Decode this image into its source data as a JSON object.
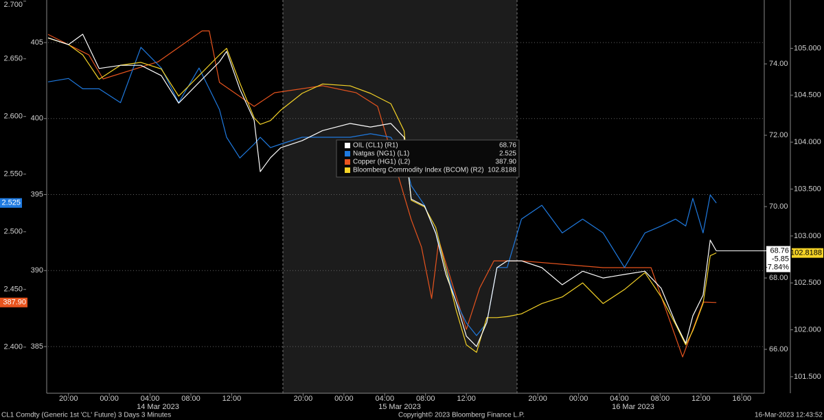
{
  "chart_data": {
    "type": "line",
    "x": [
      0,
      2.0,
      3.4,
      5.0,
      7.1,
      9.1,
      11.1,
      12.8,
      14.8,
      16.8,
      17.5,
      18.8,
      20.2,
      20.8,
      21.8,
      22.8,
      24.9,
      26.9,
      29.6,
      31.6,
      33.6,
      34.9,
      35.6,
      36.9,
      38.0,
      39.0,
      40.0,
      41.0,
      42.0,
      43.0,
      44.0,
      45.0,
      46.4,
      48.4,
      50.4,
      52.4,
      54.4,
      56.5,
      58.5,
      60.1,
      61.5,
      62.5,
      63.2,
      64.2,
      64.9,
      65.5
    ],
    "xlim": [
      0,
      70.2
    ],
    "xticks": [
      {
        "value": 2,
        "label": "20:00"
      },
      {
        "value": 6,
        "label": "00:00"
      },
      {
        "value": 10,
        "label": "04:00"
      },
      {
        "value": 14,
        "label": "08:00"
      },
      {
        "value": 18,
        "label": "12:00"
      },
      {
        "value": 25,
        "label": "20:00"
      },
      {
        "value": 29,
        "label": "00:00"
      },
      {
        "value": 33,
        "label": "04:00"
      },
      {
        "value": 37,
        "label": "08:00"
      },
      {
        "value": 41,
        "label": "12:00"
      },
      {
        "value": 48,
        "label": "20:00"
      },
      {
        "value": 52,
        "label": "00:00"
      },
      {
        "value": 56,
        "label": "04:00"
      },
      {
        "value": 60,
        "label": "08:00"
      },
      {
        "value": 64,
        "label": "12:00"
      },
      {
        "value": 68,
        "label": "16:00"
      }
    ],
    "dates": [
      "14 Mar 2023",
      "15 Mar 2023",
      "16 Mar 2023"
    ],
    "axes": {
      "L1": {
        "lim": [
          2.36,
          2.701
        ],
        "ticks": [
          {
            "value": 2.4,
            "label": "2.400"
          },
          {
            "value": 2.45,
            "label": "2.450"
          },
          {
            "value": 2.5,
            "label": "2.500"
          },
          {
            "value": 2.55,
            "label": "2.550"
          },
          {
            "value": 2.6,
            "label": "2.600"
          },
          {
            "value": 2.65,
            "label": "2.650"
          },
          {
            "value": 2.7,
            "label": "2.700"
          }
        ]
      },
      "L2": {
        "lim": [
          381.93,
          407.8
        ],
        "ticks": [
          385,
          390,
          395,
          400,
          405
        ]
      },
      "R1": {
        "lim": [
          64.77,
          75.79
        ],
        "ticks": [
          {
            "value": 66,
            "label": "66.00"
          },
          {
            "value": 68,
            "label": "68.00"
          },
          {
            "value": 70,
            "label": "70.00"
          },
          {
            "value": 72,
            "label": "72.00"
          },
          {
            "value": 74,
            "label": "74.00"
          }
        ]
      },
      "R2": {
        "lim": [
          101.324,
          105.515
        ],
        "ticks": [
          {
            "value": 101.5,
            "label": "101.500"
          },
          {
            "value": 102,
            "label": "102.000"
          },
          {
            "value": 102.5,
            "label": "102.500"
          },
          {
            "value": 103,
            "label": "103.000"
          },
          {
            "value": 103.5,
            "label": "103.500"
          },
          {
            "value": 104,
            "label": "104.000"
          },
          {
            "value": 104.5,
            "label": "104.500"
          },
          {
            "value": 105,
            "label": "105.000"
          }
        ]
      }
    },
    "grid": true,
    "grid_axis": "L2",
    "series": [
      {
        "name": "OIL (CL1) (R1)",
        "color": "#ffffff",
        "axis": "R1",
        "last": 68.76,
        "last_label": "68.76",
        "change": "-5.85",
        "change_pct": "-7.84%",
        "values": [
          74.73,
          74.54,
          74.83,
          73.87,
          73.96,
          73.96,
          73.67,
          72.9,
          73.48,
          74.06,
          74.35,
          73.29,
          72.42,
          70.98,
          71.37,
          71.65,
          71.85,
          72.13,
          72.33,
          72.23,
          72.33,
          71.94,
          70.21,
          70.02,
          69.25,
          68.1,
          67.33,
          66.37,
          66.08,
          66.75,
          68.29,
          68.48,
          68.48,
          68.29,
          67.81,
          68.19,
          68.0,
          68.1,
          68.19,
          67.71,
          66.75,
          66.17,
          66.94,
          67.52,
          69.06,
          68.76
        ]
      },
      {
        "name": "Natgas (NG1) (L1)",
        "color": "#1f7ae0",
        "axis": "L1",
        "last": 2.525,
        "last_label": "2.525",
        "values": [
          2.63,
          2.633,
          2.624,
          2.624,
          2.612,
          2.66,
          2.642,
          2.612,
          2.642,
          2.606,
          2.582,
          2.564,
          2.576,
          2.582,
          2.573,
          2.576,
          2.582,
          2.582,
          2.582,
          2.585,
          2.582,
          2.564,
          2.54,
          2.523,
          2.499,
          2.469,
          2.439,
          2.421,
          2.41,
          2.421,
          2.469,
          2.469,
          2.511,
          2.523,
          2.499,
          2.511,
          2.499,
          2.469,
          2.499,
          2.505,
          2.511,
          2.505,
          2.529,
          2.499,
          2.532,
          2.525
        ]
      },
      {
        "name": "Copper (HG1) (L2)",
        "color": "#e8541e",
        "axis": "L2",
        "last": 387.9,
        "last_label": "387.90",
        "x": [
          0,
          4.0,
          5.4,
          10.8,
          15.1,
          15.8,
          16.8,
          20.2,
          22.2,
          26.9,
          30.2,
          32.3,
          35.6,
          36.6,
          37.6,
          38.3,
          41.0,
          42.3,
          43.7,
          46.4,
          54.4,
          59.1,
          62.2,
          64.2,
          65.5
        ],
        "values": [
          405.54,
          404.19,
          402.61,
          403.74,
          405.77,
          405.77,
          402.38,
          400.8,
          401.7,
          402.16,
          401.7,
          400.8,
          393.35,
          391.55,
          388.16,
          392.0,
          386.13,
          388.84,
          390.64,
          390.64,
          390.19,
          390.19,
          384.32,
          387.93,
          387.9
        ]
      },
      {
        "name": "Bloomberg Commodity Index (BCOM) (R2)",
        "color": "#f5d327",
        "axis": "R2",
        "last": 102.8188,
        "last_label": "102.8188",
        "values": [
          105.11,
          105.04,
          104.93,
          104.67,
          104.82,
          104.85,
          104.78,
          104.49,
          104.71,
          104.93,
          105.0,
          104.63,
          104.26,
          104.19,
          104.23,
          104.34,
          104.52,
          104.62,
          104.6,
          104.52,
          104.41,
          104.12,
          103.38,
          103.31,
          103.09,
          102.65,
          102.21,
          101.84,
          101.76,
          102.13,
          102.13,
          102.14,
          102.17,
          102.28,
          102.35,
          102.5,
          102.28,
          102.43,
          102.61,
          102.35,
          102.06,
          101.84,
          101.99,
          102.28,
          102.79,
          102.82
        ]
      }
    ],
    "footer": {
      "left": "CL1 Comdty (Generic 1st 'CL' Future) 3 Days 3 Minutes",
      "center": "Copyright© 2023 Bloomberg Finance L.P.",
      "right": "16-Mar-2023 12:43:52"
    }
  }
}
